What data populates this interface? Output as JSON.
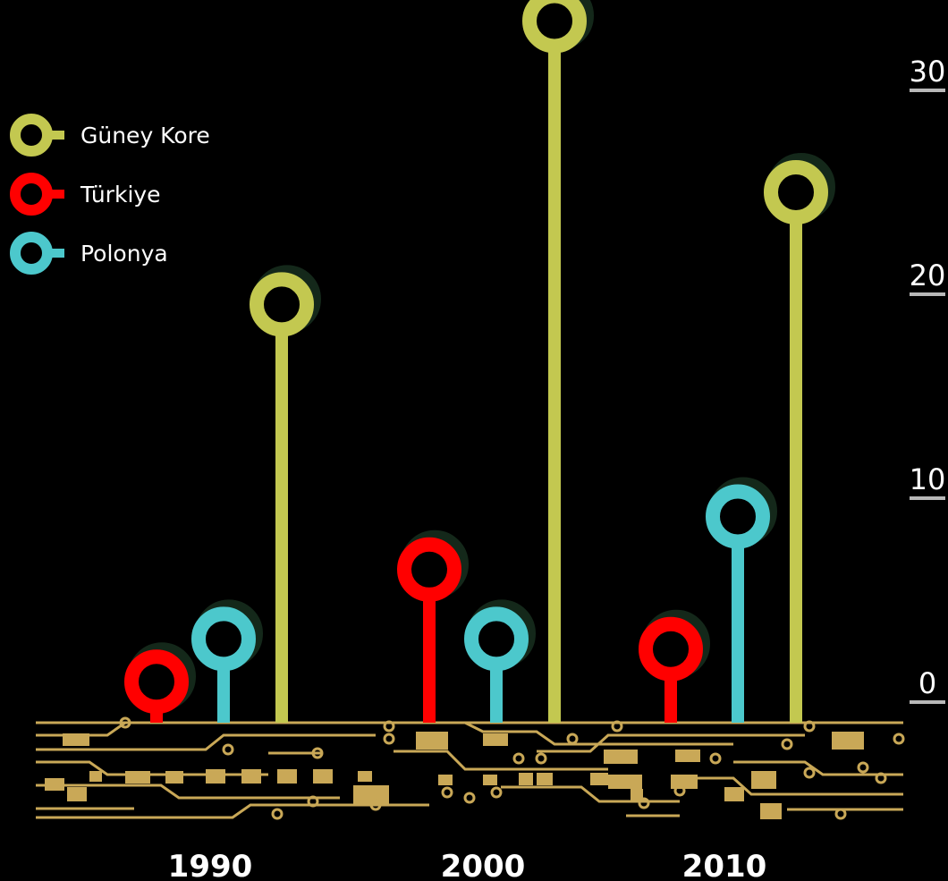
{
  "chart_data": {
    "type": "bar",
    "title": "",
    "xlabel": "",
    "ylabel": "",
    "categories": [
      "1990",
      "2000",
      "2010"
    ],
    "ylim": [
      0,
      30
    ],
    "y_ticks": [
      0,
      10,
      20,
      30
    ],
    "legend_position": "top-left",
    "grid": false,
    "series": [
      {
        "name": "Türkiye",
        "color": "#ff0000",
        "values": [
          1,
          6.5,
          2.6
        ]
      },
      {
        "name": "Polonya",
        "color": "#4cc8cc",
        "values": [
          3.1,
          3.1,
          9.1
        ]
      },
      {
        "name": "Güney Kore",
        "color": "#c3c850",
        "values": [
          19.5,
          33.4,
          25
        ]
      }
    ]
  },
  "board": {
    "color": "#c9a857"
  }
}
